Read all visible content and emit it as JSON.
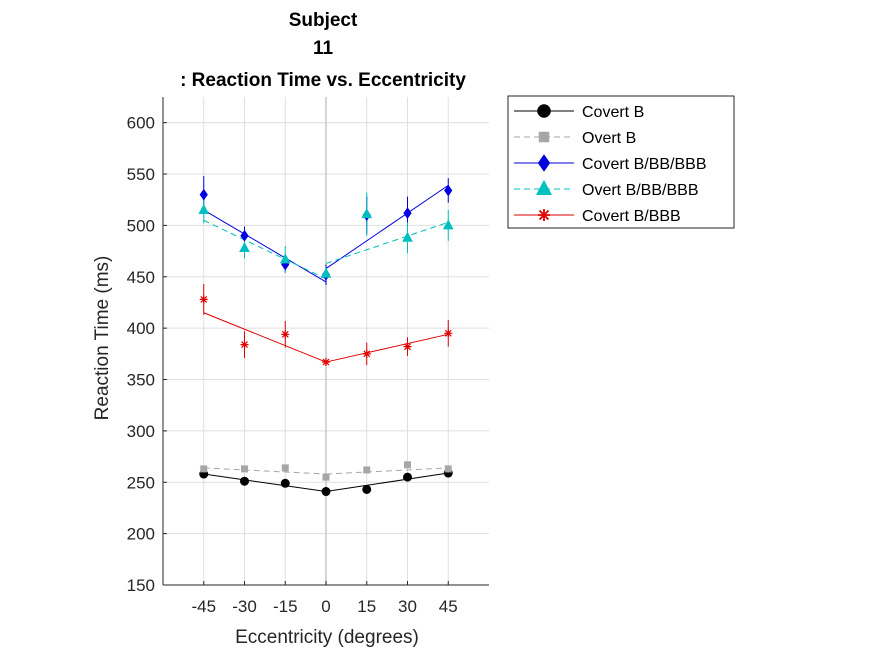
{
  "chart_data": {
    "type": "line",
    "title_lines": [
      "Subject",
      "11",
      ": Reaction Time vs. Eccentricity"
    ],
    "xlabel": "Eccentricity (degrees)",
    "ylabel": "Reaction Time (ms)",
    "x": [
      -45,
      -30,
      -15,
      0,
      15,
      30,
      45
    ],
    "xticks": [
      "-45",
      "-30",
      "-15",
      "0",
      "15",
      "30",
      "45"
    ],
    "xlim": [
      -60,
      60
    ],
    "ylim": [
      150,
      625
    ],
    "yticks": [
      "150",
      "200",
      "250",
      "300",
      "350",
      "400",
      "450",
      "500",
      "550",
      "600"
    ],
    "grid": true,
    "legend_position": "outside-top-right",
    "series": [
      {
        "name": "Covert B",
        "color": "#000000",
        "marker": "circle",
        "line_style": "solid",
        "values": [
          258,
          251,
          249,
          241,
          243,
          255,
          259
        ],
        "errors": [
          4,
          4,
          4,
          4,
          3,
          4,
          3
        ],
        "fit_left": [
          258,
          241
        ],
        "fit_right": [
          241,
          259
        ]
      },
      {
        "name": "Overt B",
        "color": "#a6a6a6",
        "marker": "square",
        "line_style": "dashed",
        "values": [
          263,
          263,
          264,
          255,
          262,
          267,
          263
        ],
        "errors": [
          3,
          2,
          3,
          3,
          3,
          3,
          3
        ],
        "fit_left": [
          264,
          258
        ],
        "fit_right": [
          258,
          264
        ]
      },
      {
        "name": "Covert B/BB/BBB",
        "color": "#0000e0",
        "marker": "diamond",
        "line_style": "solid",
        "values": [
          530,
          490,
          462,
          452,
          510,
          512,
          534
        ],
        "errors": [
          18,
          9,
          8,
          10,
          18,
          16,
          12
        ],
        "fit_left": [
          515,
          445
        ],
        "fit_right": [
          458,
          539
        ]
      },
      {
        "name": "Overt B/BB/BBB",
        "color": "#00bfbf",
        "marker": "triangle",
        "line_style": "dashed",
        "values": [
          515,
          478,
          467,
          453,
          511,
          488,
          500
        ],
        "errors": [
          13,
          10,
          13,
          6,
          21,
          15,
          15
        ],
        "fit_left": [
          505,
          448
        ],
        "fit_right": [
          463,
          503
        ]
      },
      {
        "name": "Covert B/BBB",
        "color": "#e00000",
        "marker": "asterisk",
        "line_style": "solid",
        "values": [
          428,
          384,
          394,
          367,
          375,
          382,
          395
        ],
        "errors": [
          15,
          13,
          13,
          3,
          11,
          9,
          13
        ],
        "fit_left": [
          415,
          367
        ],
        "fit_right": [
          367,
          394
        ]
      }
    ]
  }
}
